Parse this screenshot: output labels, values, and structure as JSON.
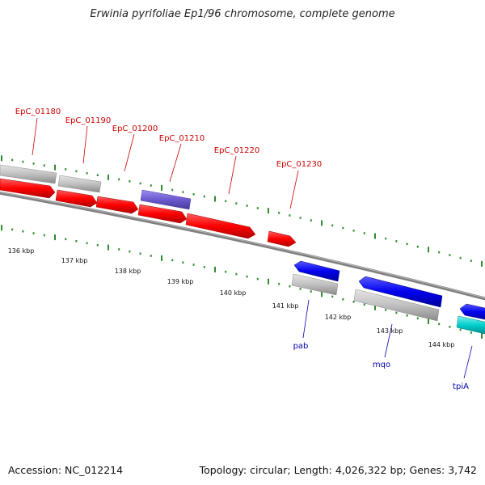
{
  "title": "Erwinia pyrifoliae Ep1/96 chromosome, complete genome",
  "accession_label": "Accession: NC_012214",
  "summary_label": "Topology: circular; Length: 4,026,322 bp; Genes: 3,742",
  "colors": {
    "forward_gene": "#ff0000",
    "forward_gene_alt": "#6a5acd",
    "reverse_gene": "#0000ee",
    "reverse_gene_alt": "#00cccc",
    "pseudo_gene": "#bdbdbd",
    "forward_label": "#cc0000",
    "reverse_label": "#0000aa",
    "tick": "#2e8b2e",
    "backbone": "#808080"
  },
  "tick_labels": [
    "136 kbp",
    "137 kbp",
    "138 kbp",
    "139 kbp",
    "140 kbp",
    "141 kbp",
    "142 kbp",
    "143 kbp",
    "144 kbp"
  ],
  "forward_labels": [
    "EpC_01180",
    "EpC_01190",
    "EpC_01200",
    "EpC_01210",
    "EpC_01220",
    "EpC_01230"
  ],
  "reverse_labels": [
    "pab",
    "mqo",
    "tpiA"
  ]
}
